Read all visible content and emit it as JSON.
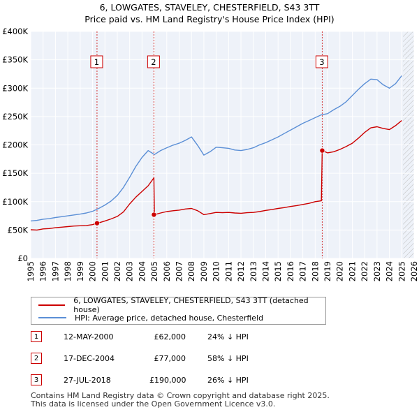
{
  "title_line1": "6, LOWGATES, STAVELEY, CHESTERFIELD, S43 3TT",
  "title_line2": "Price paid vs. HM Land Registry's House Price Index (HPI)",
  "chart_data": {
    "type": "line",
    "title": "6, LOWGATES, STAVELEY, CHESTERFIELD, S43 3TT — Price paid vs. HM Land Registry's House Price Index (HPI)",
    "xlabel": "",
    "ylabel": "",
    "xlim": [
      1995,
      2026
    ],
    "ylim": [
      0,
      400000
    ],
    "y_ticks": [
      0,
      50000,
      100000,
      150000,
      200000,
      250000,
      300000,
      350000,
      400000
    ],
    "y_tick_labels": [
      "£0",
      "£50K",
      "£100K",
      "£150K",
      "£200K",
      "£250K",
      "£300K",
      "£350K",
      "£400K"
    ],
    "x_ticks": [
      1995,
      1996,
      1997,
      1998,
      1999,
      2000,
      2001,
      2002,
      2003,
      2004,
      2005,
      2006,
      2007,
      2008,
      2009,
      2010,
      2011,
      2012,
      2013,
      2014,
      2015,
      2016,
      2017,
      2018,
      2019,
      2020,
      2021,
      2022,
      2023,
      2024,
      2025,
      2026
    ],
    "grid": true,
    "future_hatch_from": 2025.1,
    "series": [
      {
        "name": "6, LOWGATES, STAVELEY, CHESTERFIELD, S43 3TT (detached house)",
        "color": "#cc0000",
        "x": [
          1995.0,
          1995.5,
          1996.0,
          1996.5,
          1997.0,
          1997.5,
          1998.0,
          1998.5,
          1999.0,
          1999.5,
          2000.0,
          2000.36,
          2000.5,
          2001.0,
          2001.5,
          2002.0,
          2002.5,
          2003.0,
          2003.5,
          2004.0,
          2004.5,
          2004.96,
          2005.0,
          2005.5,
          2006.0,
          2006.5,
          2007.0,
          2007.5,
          2008.0,
          2008.5,
          2009.0,
          2009.5,
          2010.0,
          2010.5,
          2011.0,
          2011.5,
          2012.0,
          2012.5,
          2013.0,
          2013.5,
          2014.0,
          2014.5,
          2015.0,
          2015.5,
          2016.0,
          2016.5,
          2017.0,
          2017.5,
          2018.0,
          2018.5,
          2018.57,
          2019.0,
          2019.5,
          2020.0,
          2020.5,
          2021.0,
          2021.5,
          2022.0,
          2022.5,
          2023.0,
          2023.5,
          2024.0,
          2024.5,
          2025.0
        ],
        "values": [
          50500,
          50000,
          52000,
          52500,
          54000,
          55000,
          56000,
          57000,
          57500,
          58000,
          59500,
          62000,
          62500,
          66000,
          69500,
          74000,
          82000,
          96000,
          108000,
          118000,
          128000,
          142000,
          77000,
          80000,
          82500,
          84000,
          85000,
          87000,
          88000,
          84000,
          77000,
          79000,
          81000,
          80500,
          81000,
          80000,
          79500,
          80500,
          81000,
          82500,
          84500,
          86000,
          88000,
          89500,
          91500,
          93000,
          95000,
          97000,
          100000,
          101500,
          190000,
          186000,
          188000,
          192000,
          197000,
          203000,
          212000,
          222000,
          230000,
          232000,
          229000,
          227000,
          234000,
          243000
        ]
      },
      {
        "name": "HPI: Average price, detached house, Chesterfield",
        "color": "#5b8fd6",
        "x": [
          1995.0,
          1995.5,
          1996.0,
          1996.5,
          1997.0,
          1997.5,
          1998.0,
          1998.5,
          1999.0,
          1999.5,
          2000.0,
          2000.5,
          2001.0,
          2001.5,
          2002.0,
          2002.5,
          2003.0,
          2003.5,
          2004.0,
          2004.5,
          2005.0,
          2005.5,
          2006.0,
          2006.5,
          2007.0,
          2007.5,
          2008.0,
          2008.5,
          2009.0,
          2009.5,
          2010.0,
          2010.5,
          2011.0,
          2011.5,
          2012.0,
          2012.5,
          2013.0,
          2013.5,
          2014.0,
          2014.5,
          2015.0,
          2015.5,
          2016.0,
          2016.5,
          2017.0,
          2017.5,
          2018.0,
          2018.5,
          2019.0,
          2019.5,
          2020.0,
          2020.5,
          2021.0,
          2021.5,
          2022.0,
          2022.5,
          2023.0,
          2023.5,
          2024.0,
          2024.5,
          2025.0
        ],
        "values": [
          66000,
          67000,
          69000,
          70000,
          72000,
          73500,
          75000,
          76500,
          78000,
          80000,
          83000,
          88000,
          94000,
          101000,
          111000,
          125000,
          143000,
          162000,
          178000,
          190000,
          183000,
          190000,
          195000,
          199500,
          203000,
          208000,
          214000,
          199000,
          182000,
          188000,
          196000,
          195000,
          194000,
          191000,
          190000,
          192000,
          195000,
          200000,
          204000,
          209000,
          214000,
          220000,
          226000,
          232000,
          238000,
          243000,
          248000,
          253000,
          255000,
          262000,
          268000,
          276000,
          287000,
          298000,
          308000,
          316000,
          315000,
          306000,
          300000,
          308000,
          322000
        ]
      }
    ],
    "sale_markers": [
      {
        "label": "1",
        "x": 2000.36,
        "value": 62000
      },
      {
        "label": "2",
        "x": 2004.96,
        "value": 77000
      },
      {
        "label": "3",
        "x": 2018.57,
        "value": 190000
      }
    ]
  },
  "legend": {
    "items": [
      {
        "label": "6, LOWGATES, STAVELEY, CHESTERFIELD, S43 3TT (detached house)",
        "color": "#cc0000"
      },
      {
        "label": "HPI: Average price, detached house, Chesterfield",
        "color": "#5b8fd6"
      }
    ]
  },
  "sales": [
    {
      "num": "1",
      "date": "12-MAY-2000",
      "price": "£62,000",
      "hpi": "24% ↓ HPI"
    },
    {
      "num": "2",
      "date": "17-DEC-2004",
      "price": "£77,000",
      "hpi": "58% ↓ HPI"
    },
    {
      "num": "3",
      "date": "27-JUL-2018",
      "price": "£190,000",
      "hpi": "26% ↓ HPI"
    }
  ],
  "footer": {
    "line1": "Contains HM Land Registry data © Crown copyright and database right 2025.",
    "line2": "This data is licensed under the Open Government Licence v3.0."
  }
}
